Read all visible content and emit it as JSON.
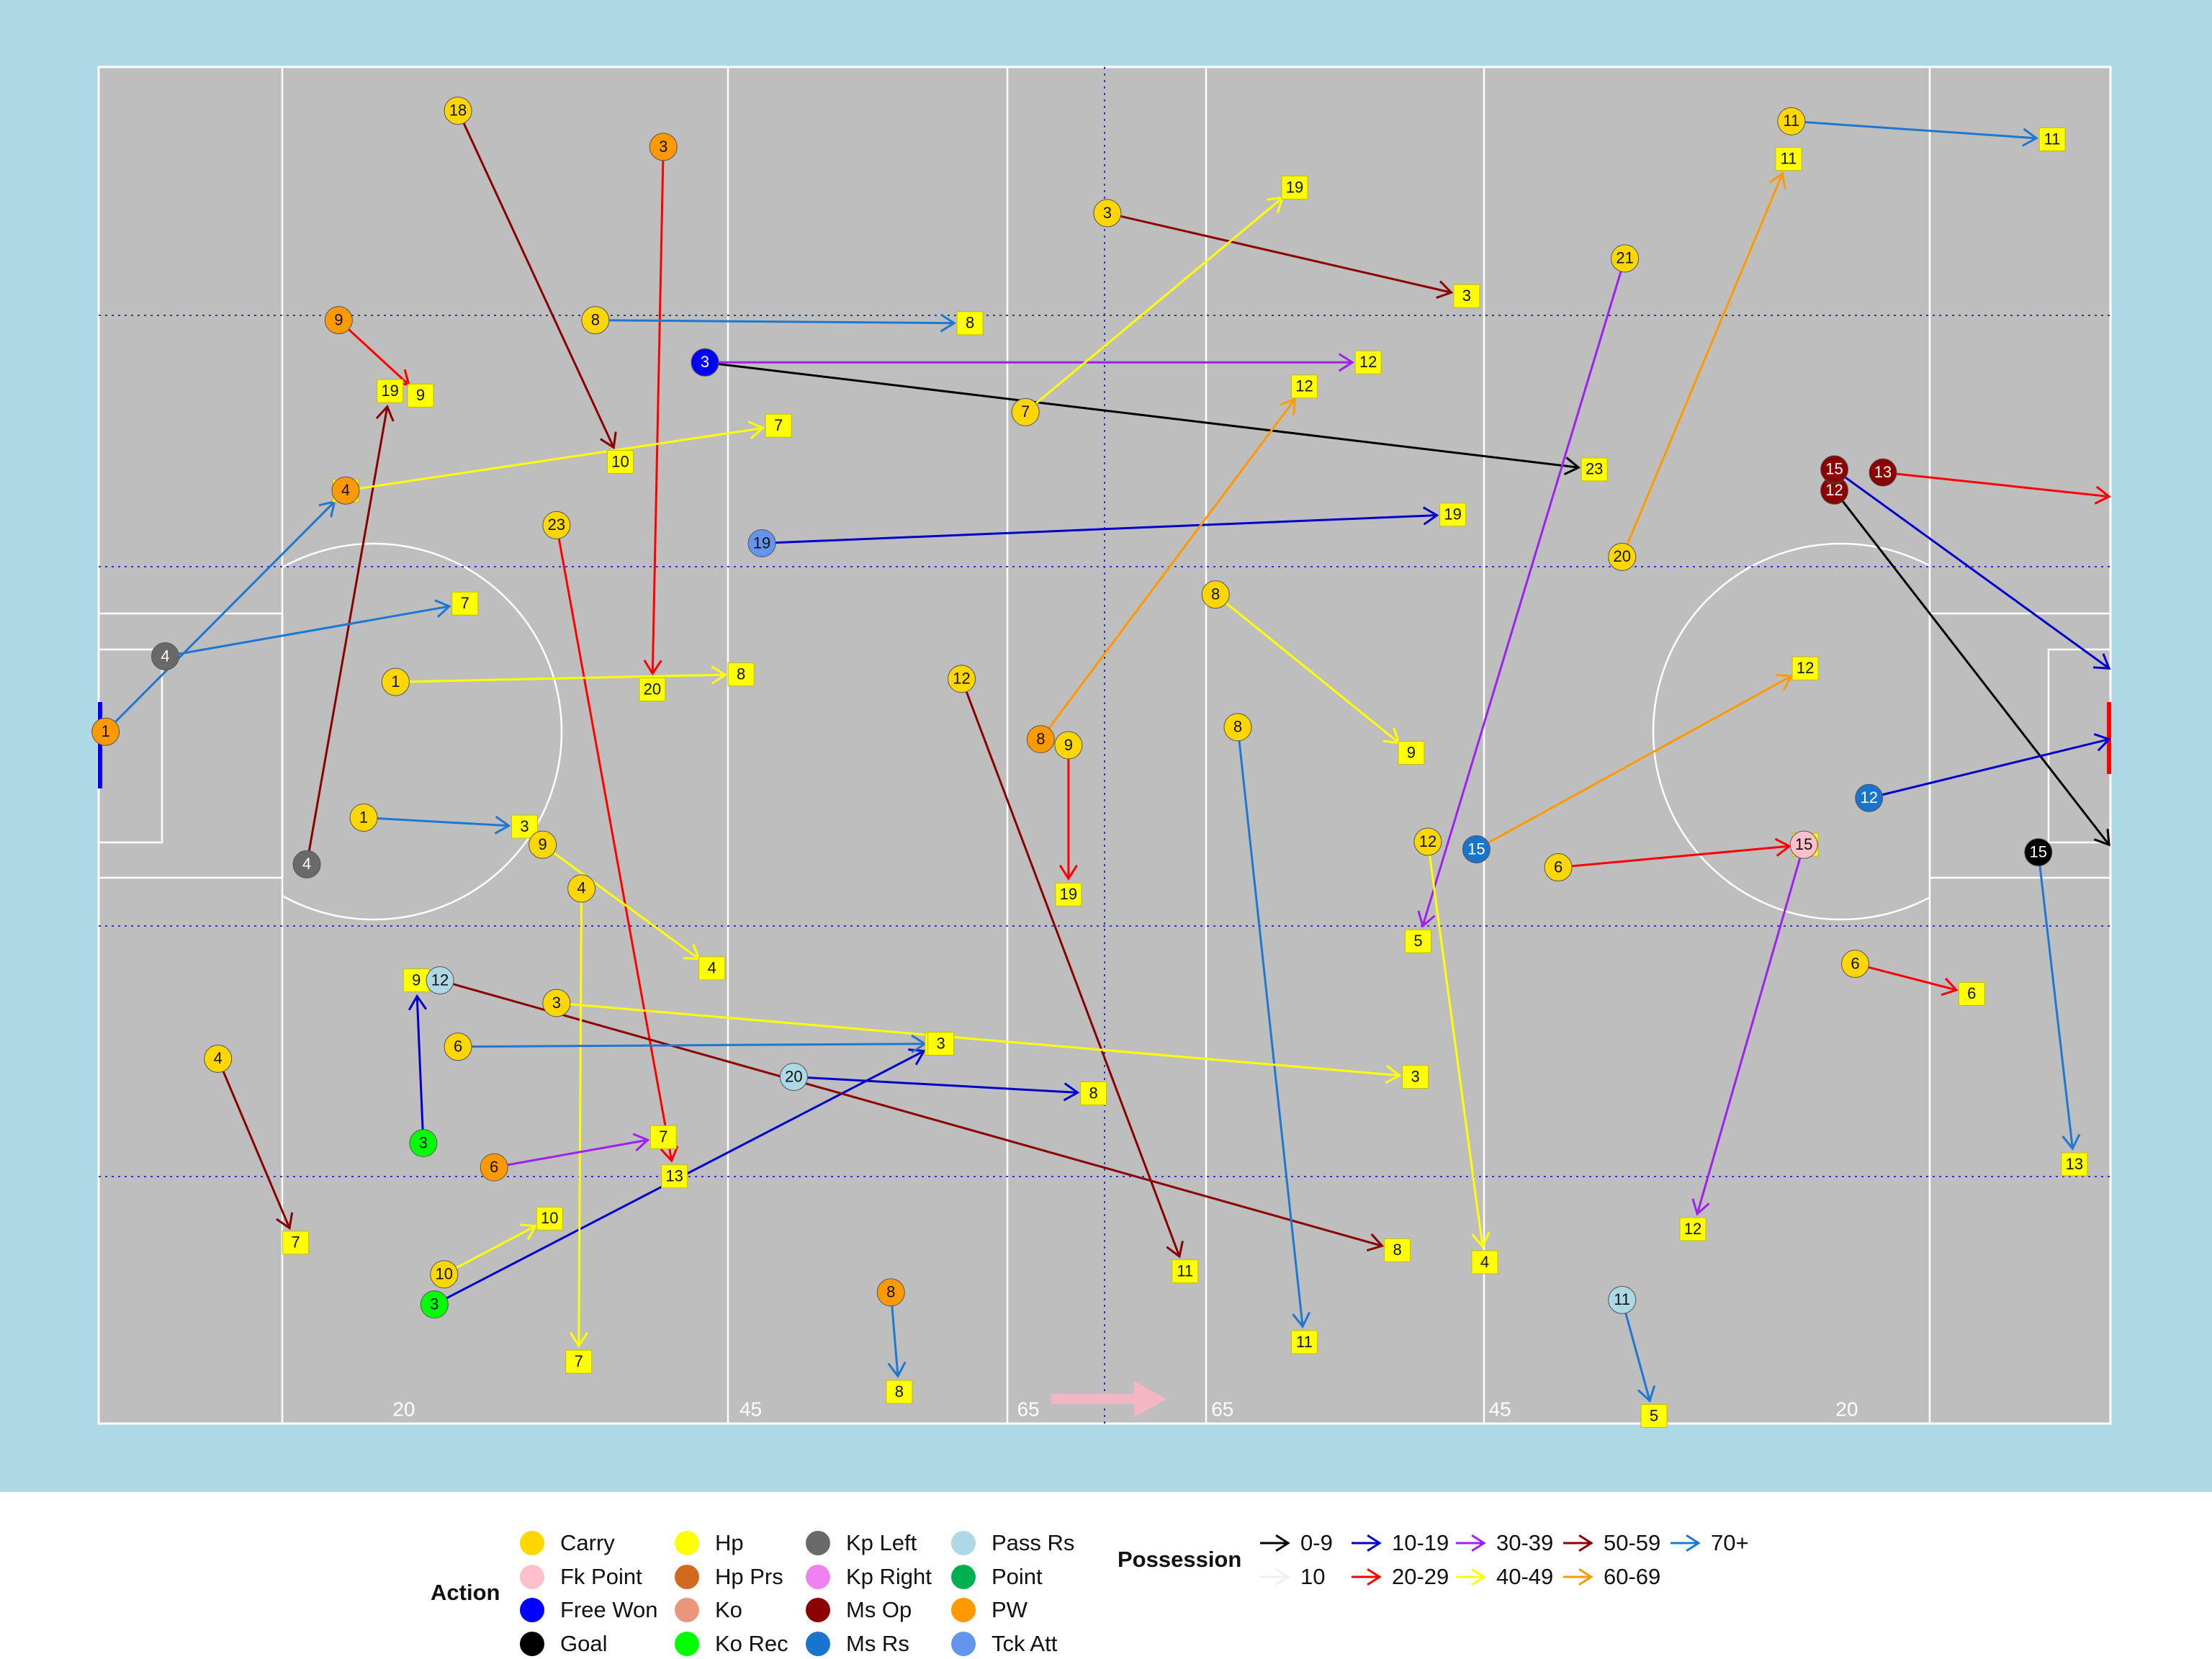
{
  "chart_data": {
    "type": "arrow",
    "xlim": [
      0,
      145
    ],
    "ylim": [
      0,
      90
    ],
    "xticks": [
      {
        "value": 22,
        "label": "20"
      },
      {
        "value": 47,
        "label": "45"
      },
      {
        "value": 67,
        "label": "65"
      },
      {
        "value": 81,
        "label": "65"
      },
      {
        "value": 101,
        "label": "45"
      },
      {
        "value": 126,
        "label": "20"
      }
    ],
    "action_legend_title": "Action",
    "possession_legend_title": "Possession",
    "actions": [
      {
        "name": "Carry",
        "color": "#ffd700"
      },
      {
        "name": "Fk Point",
        "color": "#ffc0cb"
      },
      {
        "name": "Free Won",
        "color": "#0000ff"
      },
      {
        "name": "Goal",
        "color": "#000000"
      },
      {
        "name": "Hp",
        "color": "#ffff00"
      },
      {
        "name": "Hp Prs",
        "color": "#d2691e"
      },
      {
        "name": "Ko",
        "color": "#e9967a"
      },
      {
        "name": "Ko Rec",
        "color": "#00ff00"
      },
      {
        "name": "Kp Left",
        "color": "#696969"
      },
      {
        "name": "Kp Right",
        "color": "#ee82ee"
      },
      {
        "name": "Ms Op",
        "color": "#8b0000"
      },
      {
        "name": "Ms Rs",
        "color": "#1874cd"
      },
      {
        "name": "Pass Rs",
        "color": "#add8e6"
      },
      {
        "name": "Point",
        "color": "#00b050"
      },
      {
        "name": "PW",
        "color": "#ff9900"
      },
      {
        "name": "Tck Att",
        "color": "#6495ed"
      }
    ],
    "possession": [
      {
        "name": "0-9",
        "color": "#000000"
      },
      {
        "name": "10",
        "color": "#f0f0f0"
      },
      {
        "name": "10-19",
        "color": "#0000cd"
      },
      {
        "name": "20-29",
        "color": "#ff0000"
      },
      {
        "name": "30-39",
        "color": "#a020f0"
      },
      {
        "name": "40-49",
        "color": "#ffff00"
      },
      {
        "name": "50-59",
        "color": "#8b0000"
      },
      {
        "name": "60-69",
        "color": "#ff9900"
      },
      {
        "name": "70+",
        "color": "#1e78d2"
      }
    ],
    "events": [
      {
        "action": "Free Won",
        "possession": "0-9",
        "label": "3",
        "x": 43.7,
        "y": 70.4,
        "xend": 107.8,
        "yend": 63.3,
        "end_label": "23"
      },
      {
        "action": "Ms Op",
        "possession": "0-9",
        "label": "12",
        "x": 125.1,
        "y": 61.9,
        "xend": 144.9,
        "yend": 38.4
      },
      {
        "action": "Tck Att",
        "possession": "10-19",
        "label": "19",
        "x": 47.8,
        "y": 58.4,
        "xend": 97.6,
        "yend": 60.3,
        "end_label": "19"
      },
      {
        "action": "Ko Rec",
        "possession": "10-19",
        "label": "3",
        "x": 24.2,
        "y": 7.9,
        "xend": 60.5,
        "yend": 25.2,
        "end_label": "3"
      },
      {
        "action": "Ko Rec",
        "possession": "10-19",
        "label": "3",
        "x": 23.4,
        "y": 18.6,
        "xend": 22.9,
        "yend": 29.4,
        "end_label": "9"
      },
      {
        "action": "PW",
        "possession": "20-29",
        "label": "9",
        "x": 17.3,
        "y": 73.2,
        "xend": 23.2,
        "yend": 68.2,
        "end_label": "9"
      },
      {
        "action": "PW",
        "possession": "20-29",
        "label": "3",
        "x": 40.7,
        "y": 84.7,
        "xend": 39.9,
        "yend": 48.7,
        "end_label": "20"
      },
      {
        "action": "Ms Op",
        "possession": "20-29",
        "label": "13",
        "x": 128.6,
        "y": 63.1,
        "xend": 144.9,
        "yend": 61.5
      },
      {
        "action": "Carry",
        "possession": "20-29",
        "label": "23",
        "x": 33.0,
        "y": 59.6,
        "xend": 41.5,
        "yend": 16.4,
        "end_label": "13"
      },
      {
        "action": "Carry",
        "possession": "50-59",
        "label": "18",
        "x": 25.9,
        "y": 87.1,
        "xend": 37.6,
        "yend": 63.8,
        "end_label": "10"
      },
      {
        "action": "Carry",
        "possession": "50-59",
        "label": "4",
        "x": 8.6,
        "y": 24.2,
        "xend": 14.2,
        "yend": 12.0,
        "end_label": "7"
      },
      {
        "action": "Kp Left",
        "possession": "50-59",
        "label": "4",
        "x": 15.0,
        "y": 37.1,
        "xend": 21.0,
        "yend": 68.5,
        "end_label": "19"
      },
      {
        "action": "Pass Rs",
        "possession": "50-59",
        "label": "12",
        "x": 24.6,
        "y": 29.4,
        "xend": 93.6,
        "yend": 11.5,
        "end_label": "8"
      },
      {
        "action": "Carry",
        "possession": "50-59",
        "label": "3",
        "x": 72.7,
        "y": 80.3,
        "xend": 98.6,
        "yend": 74.8,
        "end_label": "3"
      },
      {
        "action": "Carry",
        "possession": "40-49",
        "label": "1",
        "x": 21.4,
        "y": 49.2,
        "xend": 46.3,
        "yend": 49.7,
        "end_label": "8"
      },
      {
        "action": "PW",
        "possession": "40-49",
        "label": "4",
        "x": 17.8,
        "y": 61.9,
        "xend": 49.0,
        "yend": 66.2,
        "end_label": "7"
      },
      {
        "action": "Carry",
        "possession": "40-49",
        "label": "4",
        "x": 34.8,
        "y": 35.5,
        "xend": 34.6,
        "yend": 4.1,
        "end_label": "7"
      },
      {
        "action": "Carry",
        "possession": "40-49",
        "label": "10",
        "x": 24.9,
        "y": 9.9,
        "xend": 32.5,
        "yend": 13.6,
        "end_label": "10"
      },
      {
        "action": "PW",
        "possession": "60-69",
        "label": "8",
        "x": 67.9,
        "y": 45.4,
        "xend": 86.9,
        "yend": 68.8,
        "end_label": "12"
      },
      {
        "action": "Ms Rs",
        "possession": "60-69",
        "label": "15",
        "x": 99.3,
        "y": 38.1,
        "xend": 123.0,
        "yend": 50.1,
        "end_label": "12"
      },
      {
        "action": "Free Won",
        "possession": "30-39",
        "label": "3",
        "x": 43.7,
        "y": 70.4,
        "xend": 91.5,
        "yend": 70.4,
        "end_label": "12"
      },
      {
        "action": "PW",
        "possession": "30-39",
        "label": "6",
        "x": 28.5,
        "y": 17.0,
        "xend": 40.7,
        "yend": 19.0,
        "end_label": "7"
      },
      {
        "action": "Carry",
        "possession": "30-39",
        "label": "21",
        "x": 110.0,
        "y": 77.3,
        "xend": 95.1,
        "yend": 32.0,
        "end_label": "5"
      },
      {
        "action": "Carry",
        "possession": "70+",
        "label": "11",
        "x": 122.0,
        "y": 86.4,
        "xend": 140.8,
        "yend": 85.2,
        "end_label": "11"
      },
      {
        "action": "PW",
        "possession": "70+",
        "label": "1",
        "x": 0.5,
        "y": 45.9,
        "xend": 17.8,
        "yend": 61.9,
        "end_label": "4"
      },
      {
        "action": "Carry",
        "possession": "70+",
        "label": "8",
        "x": 35.8,
        "y": 73.2,
        "xend": 62.8,
        "yend": 73.0,
        "end_label": "8"
      },
      {
        "action": "PW",
        "possession": "70+",
        "label": "8",
        "x": 57.1,
        "y": 8.7,
        "xend": 57.7,
        "yend": 2.1,
        "end_label": "8"
      },
      {
        "action": "Pass Rs",
        "possession": "70+",
        "label": "11",
        "x": 109.8,
        "y": 8.2,
        "xend": 112.1,
        "yend": 0.5,
        "end_label": "5"
      },
      {
        "action": "Goal",
        "possession": "70+",
        "label": "15",
        "x": 139.8,
        "y": 37.9,
        "xend": 142.4,
        "yend": 17.2,
        "end_label": "13"
      },
      {
        "action": "Ms Op",
        "possession": "10-19",
        "label": "15",
        "x": 125.1,
        "y": 63.3,
        "xend": 144.9,
        "yend": 50.1
      },
      {
        "action": "Ms Rs",
        "possession": "10-19",
        "label": "12",
        "x": 127.6,
        "y": 41.5,
        "xend": 144.9,
        "yend": 45.4
      },
      {
        "action": "Kp Left",
        "possession": "70+",
        "label": "4",
        "x": 4.8,
        "y": 50.9,
        "xend": 26.4,
        "yend": 54.4,
        "end_label": "7"
      },
      {
        "action": "Carry",
        "possession": "40-49",
        "label": "8",
        "x": 80.5,
        "y": 55.0,
        "xend": 94.6,
        "yend": 44.5,
        "end_label": "9"
      },
      {
        "action": "Carry",
        "possession": "20-29",
        "label": "6",
        "x": 105.2,
        "y": 36.9,
        "xend": 123.0,
        "yend": 38.4,
        "end_label": "15"
      },
      {
        "action": "Fk Point",
        "possession": "30-39",
        "label": "15",
        "x": 122.9,
        "y": 38.4,
        "xend": 114.9,
        "yend": 12.9,
        "end_label": "12"
      },
      {
        "action": "Carry",
        "possession": "70+",
        "label": "8",
        "x": 82.1,
        "y": 46.2,
        "xend": 86.9,
        "yend": 5.4,
        "end_label": "11"
      },
      {
        "action": "Carry",
        "possession": "40-49",
        "label": "12",
        "x": 95.8,
        "y": 38.6,
        "xend": 99.9,
        "yend": 10.7,
        "end_label": "4"
      },
      {
        "action": "Pass Rs",
        "possession": "10-19",
        "label": "20",
        "x": 50.1,
        "y": 23.0,
        "xend": 71.7,
        "yend": 21.9,
        "end_label": "8"
      },
      {
        "action": "Carry",
        "possession": "50-59",
        "label": "12",
        "x": 62.2,
        "y": 49.4,
        "xend": 78.3,
        "yend": 10.1,
        "end_label": "11"
      },
      {
        "action": "Carry",
        "possession": "20-29",
        "label": "9",
        "x": 69.9,
        "y": 45.0,
        "xend": 69.9,
        "yend": 35.1,
        "end_label": "19"
      },
      {
        "action": "Carry",
        "possession": "20-29",
        "label": "6",
        "x": 126.6,
        "y": 30.5,
        "xend": 135.0,
        "yend": 28.5,
        "end_label": "6"
      },
      {
        "action": "Carry",
        "possession": "60-69",
        "label": "20",
        "x": 109.8,
        "y": 57.5,
        "xend": 121.8,
        "yend": 83.9,
        "end_label": "11"
      },
      {
        "action": "Carry",
        "possession": "40-49",
        "label": "7",
        "x": 66.8,
        "y": 67.1,
        "xend": 86.2,
        "yend": 82.0,
        "end_label": "19"
      },
      {
        "action": "Carry",
        "possession": "70+",
        "label": "6",
        "x": 25.9,
        "y": 25.0,
        "xend": 60.7,
        "yend": 25.2,
        "end_label": "3"
      },
      {
        "action": "Carry",
        "possession": "40-49",
        "label": "3",
        "x": 33.0,
        "y": 27.9,
        "xend": 94.9,
        "yend": 23.0,
        "end_label": "3"
      },
      {
        "action": "Carry",
        "possession": "40-49",
        "label": "9",
        "x": 32.0,
        "y": 38.4,
        "xend": 44.2,
        "yend": 30.2,
        "end_label": "4"
      },
      {
        "action": "Carry",
        "possession": "70+",
        "label": "1",
        "x": 19.1,
        "y": 40.2,
        "xend": 30.7,
        "yend": 39.6,
        "end_label": "3"
      }
    ]
  }
}
